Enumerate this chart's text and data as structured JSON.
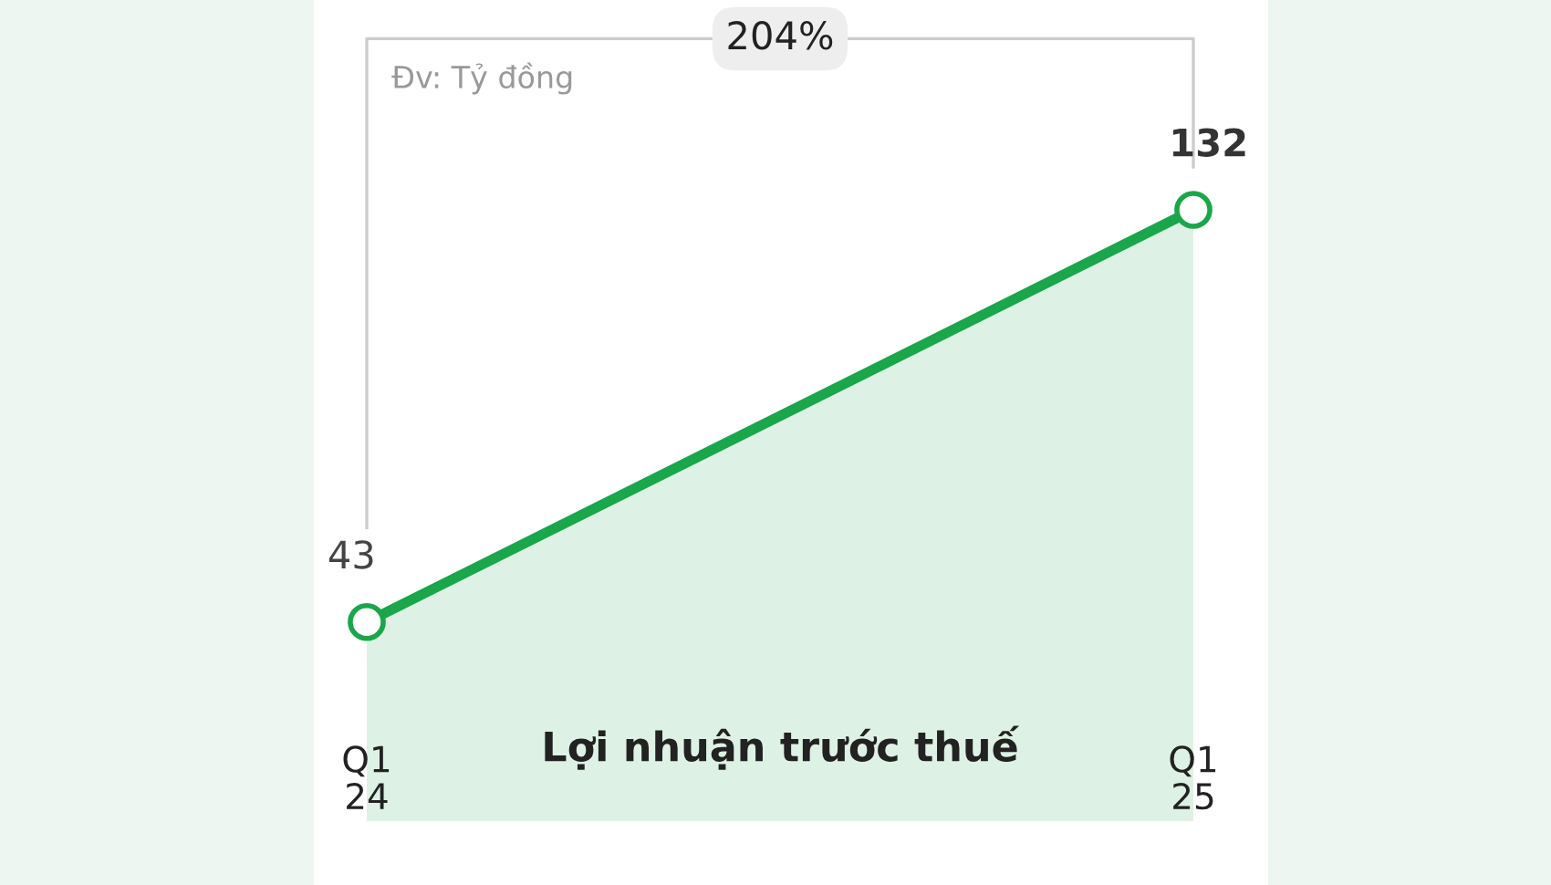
{
  "chart_data": {
    "type": "area",
    "title": "Lợi nhuận trước thuế",
    "categories": [
      "Q1\n24",
      "Q1\n25"
    ],
    "series": [
      {
        "color": "#1aa64a",
        "values": [
          43,
          132
        ]
      }
    ],
    "data_labels": true,
    "marker": "circle",
    "grid": false,
    "legend": false,
    "annotations": [
      "Đv: Tỷ đồng",
      "204%"
    ]
  }
}
